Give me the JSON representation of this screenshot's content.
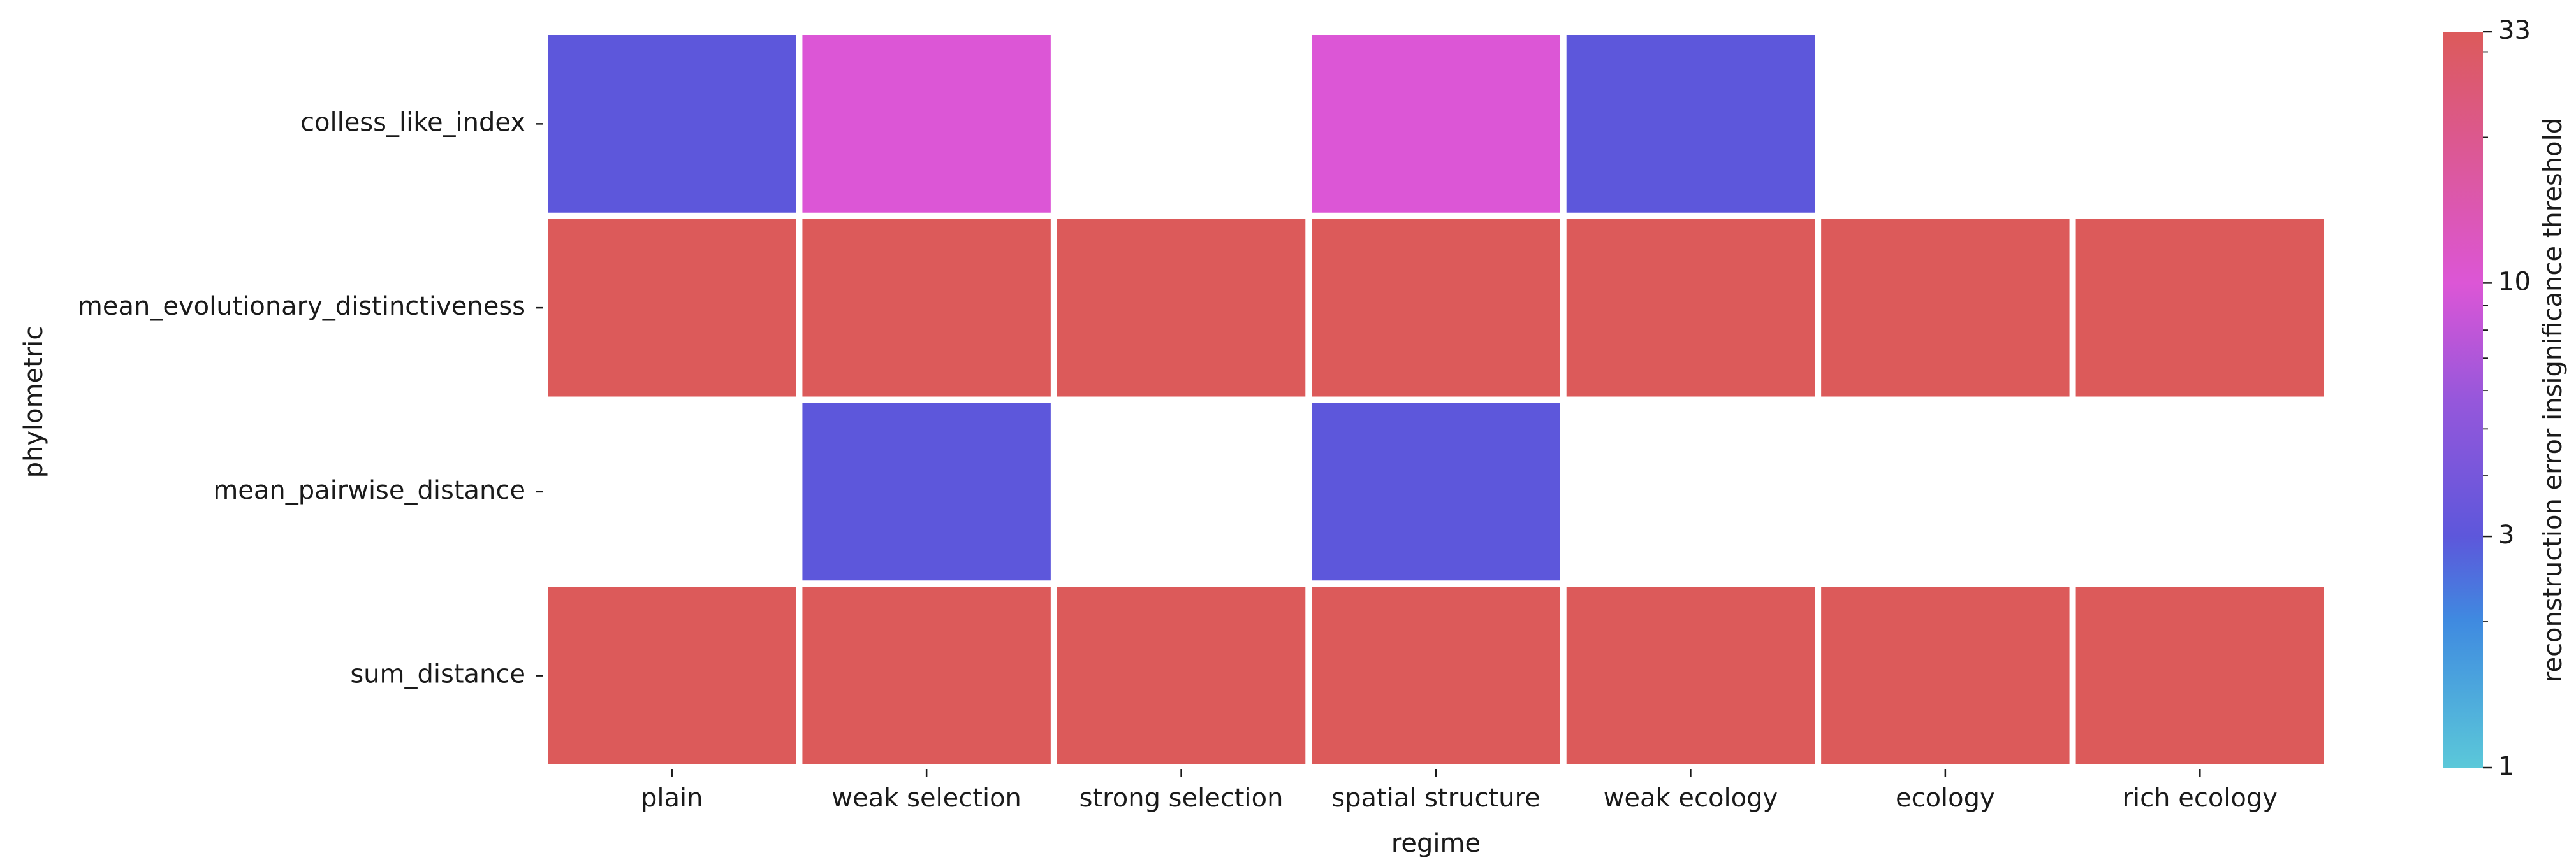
{
  "chart_data": {
    "type": "heatmap",
    "title": "",
    "xlabel": "regime",
    "ylabel": "phylometric",
    "x_categories": [
      "plain",
      "weak selection",
      "strong selection",
      "spatial structure",
      "weak ecology",
      "ecology",
      "rich ecology"
    ],
    "y_categories": [
      "colless_like_index",
      "mean_evolutionary_distinctiveness",
      "mean_pairwise_distance",
      "sum_distance"
    ],
    "values": [
      [
        3,
        10,
        null,
        10,
        3,
        null,
        null
      ],
      [
        33,
        33,
        33,
        33,
        33,
        33,
        33
      ],
      [
        null,
        3,
        null,
        3,
        null,
        null,
        null
      ],
      [
        33,
        33,
        33,
        33,
        33,
        33,
        33
      ]
    ],
    "colorbar": {
      "label": "reconstruction error insignificance threshold",
      "scale": "log",
      "range": [
        1,
        33
      ],
      "ticks": [
        1,
        3,
        10,
        33
      ],
      "tick_labels": [
        "1",
        "3",
        "10",
        "33"
      ],
      "minor_ticks": [
        2,
        4,
        5,
        6,
        7,
        8,
        9,
        20,
        30
      ],
      "colors": [
        "#5bc8d9",
        "#3f8ae0",
        "#5d57db",
        "#9657db",
        "#dc56d6",
        "#dc5a5a"
      ],
      "color_stops": [
        0,
        0.2,
        0.314,
        0.5,
        0.658,
        1
      ]
    },
    "grid": false,
    "legend": "colorbar-right"
  }
}
